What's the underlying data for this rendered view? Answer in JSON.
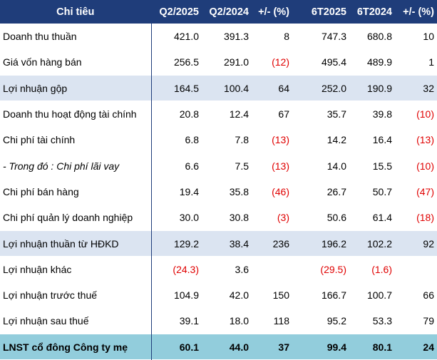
{
  "columns": {
    "label": "Chỉ tiêu",
    "q2_2025": "Q2/2025",
    "q2_2024": "Q2/2024",
    "q_change": "+/- (%)",
    "h1_2025": "6T2025",
    "h1_2024": "6T2024",
    "h_change": "+/- (%)"
  },
  "rows": [
    {
      "label": "Doanh thu thuần",
      "q2_2025": "421.0",
      "q2_2024": "391.3",
      "q_change": "8",
      "h1_2025": "747.3",
      "h1_2024": "680.8",
      "h_change": "10"
    },
    {
      "label": "Giá vốn hàng bán",
      "q2_2025": "256.5",
      "q2_2024": "291.0",
      "q_change": "(12)",
      "h1_2025": "495.4",
      "h1_2024": "489.9",
      "h_change": "1"
    },
    {
      "label": "Lợi nhuận gộp",
      "q2_2025": "164.5",
      "q2_2024": "100.4",
      "q_change": "64",
      "h1_2025": "252.0",
      "h1_2024": "190.9",
      "h_change": "32"
    },
    {
      "label": "Doanh thu hoạt động tài chính",
      "q2_2025": "20.8",
      "q2_2024": "12.4",
      "q_change": "67",
      "h1_2025": "35.7",
      "h1_2024": "39.8",
      "h_change": "(10)"
    },
    {
      "label": "Chi phí tài chính",
      "q2_2025": "6.8",
      "q2_2024": "7.8",
      "q_change": "(13)",
      "h1_2025": "14.2",
      "h1_2024": "16.4",
      "h_change": "(13)"
    },
    {
      "label": "- Trong đó : Chi phí lãi vay",
      "q2_2025": "6.6",
      "q2_2024": "7.5",
      "q_change": "(13)",
      "h1_2025": "14.0",
      "h1_2024": "15.5",
      "h_change": "(10)"
    },
    {
      "label": "Chi phí bán hàng",
      "q2_2025": "19.4",
      "q2_2024": "35.8",
      "q_change": "(46)",
      "h1_2025": "26.7",
      "h1_2024": "50.7",
      "h_change": "(47)"
    },
    {
      "label": "Chi phí quản lý doanh nghiệp",
      "q2_2025": "30.0",
      "q2_2024": "30.8",
      "q_change": "(3)",
      "h1_2025": "50.6",
      "h1_2024": "61.4",
      "h_change": "(18)"
    },
    {
      "label": "Lợi nhuận thuần từ HĐKD",
      "q2_2025": "129.2",
      "q2_2024": "38.4",
      "q_change": "236",
      "h1_2025": "196.2",
      "h1_2024": "102.2",
      "h_change": "92"
    },
    {
      "label": "Lợi nhuận khác",
      "q2_2025": "(24.3)",
      "q2_2024": "3.6",
      "q_change": "",
      "h1_2025": "(29.5)",
      "h1_2024": "(1.6)",
      "h_change": ""
    },
    {
      "label": "Lợi nhuận trước thuế",
      "q2_2025": "104.9",
      "q2_2024": "42.0",
      "q_change": "150",
      "h1_2025": "166.7",
      "h1_2024": "100.7",
      "h_change": "66"
    },
    {
      "label": "Lợi nhuận sau thuế",
      "q2_2025": "39.1",
      "q2_2024": "18.0",
      "q_change": "118",
      "h1_2025": "95.2",
      "h1_2024": "53.3",
      "h_change": "79"
    },
    {
      "label": "LNST cổ đông Công ty mẹ",
      "q2_2025": "60.1",
      "q2_2024": "44.0",
      "q_change": "37",
      "h1_2025": "99.4",
      "h1_2024": "80.1",
      "h_change": "24"
    }
  ],
  "colors": {
    "header_bg": "#1f3d7a",
    "highlight_bg": "#dbe4f1",
    "total_bg": "#92cddc",
    "negative_text": "#e00000"
  }
}
